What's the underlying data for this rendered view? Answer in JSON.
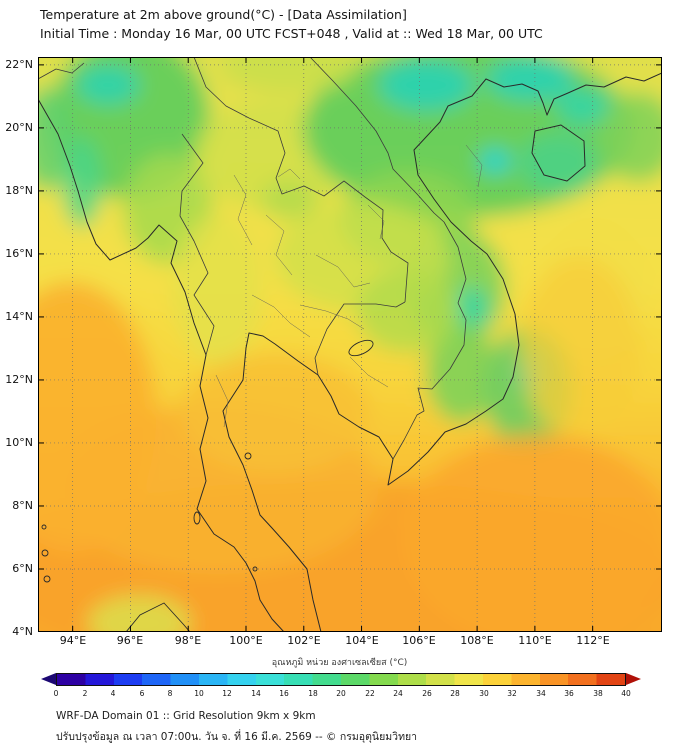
{
  "title": {
    "line1": "Temperature at 2m above ground(°C) - [Data Assimilation]",
    "line2": "Initial Time : Monday 16 Mar, 00 UTC FCST+048 , Valid at :: Wed 18 Mar, 00 UTC"
  },
  "footer": {
    "line1": "WRF-DA Domain 01 :: Grid Resolution 9km x 9km",
    "line2": "ปรับปรุงข้อมูล ณ เวลา 07:00น. วัน จ. ที่ 16 มี.ค. 2569 -- © กรมอุตุนิยมวิทยา"
  },
  "chart_data": {
    "type": "heatmap",
    "title": "Temperature at 2m above ground(°C) - [Data Assimilation]",
    "subtitle": "Initial Time : Monday 16 Mar, 00 UTC FCST+048 , Valid at :: Wed 18 Mar, 00 UTC",
    "x_axis": {
      "range_deg": [
        92.8,
        114.4
      ],
      "ticks": [
        {
          "deg": 94,
          "label": "94°E"
        },
        {
          "deg": 96,
          "label": "96°E"
        },
        {
          "deg": 98,
          "label": "98°E"
        },
        {
          "deg": 100,
          "label": "100°E"
        },
        {
          "deg": 102,
          "label": "102°E"
        },
        {
          "deg": 104,
          "label": "104°E"
        },
        {
          "deg": 106,
          "label": "106°E"
        },
        {
          "deg": 108,
          "label": "108°E"
        },
        {
          "deg": 110,
          "label": "110°E"
        },
        {
          "deg": 112,
          "label": "112°E"
        }
      ]
    },
    "y_axis": {
      "range_deg": [
        4.0,
        22.25
      ],
      "ticks": [
        {
          "deg": 22,
          "label": "22°N"
        },
        {
          "deg": 20,
          "label": "20°N"
        },
        {
          "deg": 18,
          "label": "18°N"
        },
        {
          "deg": 16,
          "label": "16°N"
        },
        {
          "deg": 14,
          "label": "14°N"
        },
        {
          "deg": 12,
          "label": "12°N"
        },
        {
          "deg": 10,
          "label": "10°N"
        },
        {
          "deg": 8,
          "label": "8°N"
        },
        {
          "deg": 6,
          "label": "6°N"
        },
        {
          "deg": 4,
          "label": "4°N"
        }
      ]
    },
    "colorbar": {
      "label": "อุณหภูมิ หน่วย องศาเซลเซียส (°C)",
      "unit": "°C",
      "ticks": [
        0,
        2,
        4,
        6,
        8,
        10,
        12,
        14,
        16,
        18,
        20,
        22,
        24,
        26,
        28,
        30,
        32,
        34,
        36,
        38,
        40
      ],
      "segment_colors": [
        "#2d00a3",
        "#2417d9",
        "#1d3df2",
        "#1e66f7",
        "#2190f7",
        "#2ab5f5",
        "#35d2ef",
        "#3ae0d8",
        "#37dfb5",
        "#43dc8e",
        "#5cd968",
        "#84da4e",
        "#aede49",
        "#d2e14a",
        "#f0e54a",
        "#fcd23a",
        "#fcb42e",
        "#f99426",
        "#f2701e",
        "#e24414"
      ],
      "arrow_left_color": "#1c0873",
      "arrow_right_color": "#b01108"
    },
    "field_summary": [
      {
        "region": "Northern Myanmar highlands (94-98E, 18-22N)",
        "approx_temp_c": [
          18,
          24
        ]
      },
      {
        "region": "Northern Vietnam and Gulf of Tonkin (104-112E, 17-22N)",
        "approx_temp_c": [
          16,
          24
        ]
      },
      {
        "region": "Cold cores NW Myanmar and NE of Hanoi / Hainan area",
        "approx_temp_c": [
          14,
          18
        ]
      },
      {
        "region": "Central and NE Thailand, Mekong lowlands",
        "approx_temp_c": [
          26,
          30
        ]
      },
      {
        "region": "Annamite range and south Vietnam highlands (106-110E, 10-16N)",
        "approx_temp_c": [
          20,
          26
        ]
      },
      {
        "region": "Gulf of Thailand and Andaman Sea",
        "approx_temp_c": [
          30,
          32
        ]
      },
      {
        "region": "Southern peninsula and seas south of 8N",
        "approx_temp_c": [
          32,
          34
        ]
      }
    ]
  }
}
